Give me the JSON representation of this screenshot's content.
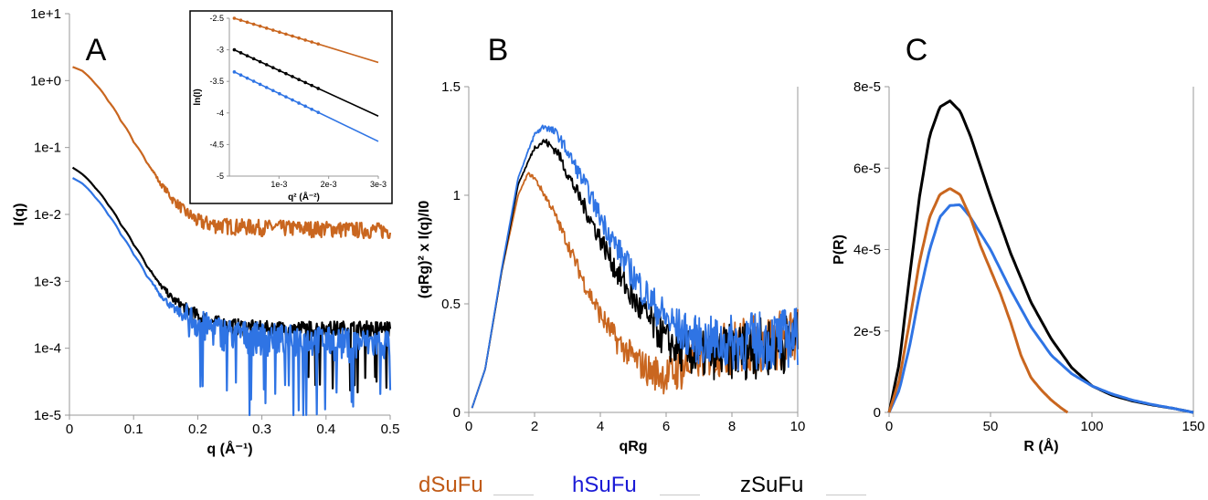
{
  "figure": {
    "legend": [
      {
        "label": "dSuFu",
        "color": "#c05a16"
      },
      {
        "label": "hSuFu",
        "color": "#1a1ad6"
      },
      {
        "label": "zSuFu",
        "color": "#000000"
      }
    ]
  },
  "colors": {
    "dSuFu": "#c9661f",
    "hSuFu": "#2f74e4",
    "zSuFu": "#000000"
  },
  "chart_data": [
    {
      "panel": "A",
      "type": "line",
      "xlabel": "q (Å⁻¹)",
      "ylabel": "I(q)",
      "xlim": [
        0,
        0.5
      ],
      "ylim": [
        1e-05,
        10
      ],
      "yscale": "log",
      "xticks": [
        "0",
        "0.1",
        "0.2",
        "0.3",
        "0.4",
        "0.5"
      ],
      "yticks": [
        "1e-5",
        "1e-4",
        "1e-3",
        "1e-2",
        "1e-1",
        "1e+0",
        "1e+1"
      ],
      "series": [
        {
          "key": "dSuFu",
          "x": [
            0.005,
            0.02,
            0.04,
            0.06,
            0.08,
            0.1,
            0.12,
            0.14,
            0.16,
            0.18,
            0.2,
            0.22,
            0.25,
            0.3,
            0.35,
            0.4,
            0.45,
            0.5
          ],
          "values": [
            1.6,
            1.4,
            0.9,
            0.5,
            0.25,
            0.12,
            0.06,
            0.03,
            0.017,
            0.011,
            0.008,
            0.0072,
            0.0068,
            0.0065,
            0.0063,
            0.0062,
            0.006,
            0.0058
          ]
        },
        {
          "key": "zSuFu",
          "x": [
            0.005,
            0.02,
            0.04,
            0.06,
            0.08,
            0.1,
            0.12,
            0.14,
            0.16,
            0.18,
            0.2,
            0.22,
            0.25,
            0.3,
            0.35,
            0.4,
            0.45,
            0.5
          ],
          "values": [
            0.05,
            0.04,
            0.025,
            0.014,
            0.007,
            0.0035,
            0.0017,
            0.0009,
            0.00055,
            0.0004,
            0.0003,
            0.00025,
            0.00022,
            0.0002,
            0.0002,
            0.0002,
            0.0002,
            0.0002
          ]
        },
        {
          "key": "hSuFu",
          "x": [
            0.005,
            0.02,
            0.04,
            0.06,
            0.08,
            0.1,
            0.12,
            0.14,
            0.16,
            0.18,
            0.2,
            0.22,
            0.25,
            0.3,
            0.35,
            0.4,
            0.45,
            0.5
          ],
          "values": [
            0.035,
            0.029,
            0.018,
            0.01,
            0.005,
            0.0025,
            0.0012,
            0.00065,
            0.0004,
            0.0003,
            0.00024,
            0.0002,
            0.00017,
            0.00015,
            0.00014,
            0.00013,
            0.00012,
            0.00012
          ]
        }
      ]
    },
    {
      "panel": "A-inset",
      "type": "line",
      "xlabel": "q² (Å⁻²)",
      "ylabel": "ln(I)",
      "xlim": [
        0,
        0.003
      ],
      "ylim": [
        -5,
        -2.5
      ],
      "xticks": [
        "1e-3",
        "2e-3",
        "3e-3"
      ],
      "yticks": [
        "-2.5",
        "-3",
        "-3.5",
        "-4",
        "-4.5",
        "-5"
      ],
      "series": [
        {
          "key": "dSuFu",
          "x": [
            0.0001,
            0.003
          ],
          "values": [
            -2.5,
            -3.2
          ]
        },
        {
          "key": "zSuFu",
          "x": [
            0.0001,
            0.003
          ],
          "values": [
            -3.0,
            -4.05
          ]
        },
        {
          "key": "hSuFu",
          "x": [
            0.0001,
            0.003
          ],
          "values": [
            -3.35,
            -4.45
          ]
        }
      ]
    },
    {
      "panel": "B",
      "type": "line",
      "xlabel": "qRg",
      "ylabel": "(qRg)² x I(q)/I0",
      "xlim": [
        0,
        10
      ],
      "ylim": [
        0,
        1.5
      ],
      "xticks": [
        "0",
        "2",
        "4",
        "6",
        "8",
        "10"
      ],
      "yticks": [
        "0",
        "0.5",
        "1",
        "1.5"
      ],
      "series": [
        {
          "key": "dSuFu",
          "x": [
            0.1,
            0.5,
            1,
            1.5,
            1.8,
            2,
            2.5,
            3,
            3.5,
            4,
            4.5,
            5,
            5.5,
            6,
            6.5,
            7,
            8,
            9,
            10
          ],
          "values": [
            0.02,
            0.2,
            0.65,
            1.0,
            1.1,
            1.08,
            0.95,
            0.78,
            0.6,
            0.45,
            0.33,
            0.25,
            0.19,
            0.17,
            0.2,
            0.26,
            0.3,
            0.32,
            0.35
          ]
        },
        {
          "key": "zSuFu",
          "x": [
            0.1,
            0.5,
            1,
            1.5,
            2,
            2.3,
            2.7,
            3,
            3.5,
            4,
            4.5,
            5,
            5.5,
            6,
            6.5,
            7,
            8,
            9,
            10
          ],
          "values": [
            0.02,
            0.2,
            0.65,
            1.05,
            1.22,
            1.25,
            1.2,
            1.1,
            0.95,
            0.8,
            0.65,
            0.52,
            0.42,
            0.33,
            0.28,
            0.26,
            0.28,
            0.3,
            0.33
          ]
        },
        {
          "key": "hSuFu",
          "x": [
            0.1,
            0.5,
            1,
            1.5,
            2,
            2.3,
            2.7,
            3,
            3.5,
            4,
            4.5,
            5,
            5.5,
            6,
            6.5,
            7,
            8,
            9,
            10
          ],
          "values": [
            0.02,
            0.2,
            0.66,
            1.08,
            1.28,
            1.32,
            1.28,
            1.2,
            1.06,
            0.9,
            0.76,
            0.63,
            0.52,
            0.43,
            0.37,
            0.33,
            0.32,
            0.33,
            0.35
          ]
        }
      ]
    },
    {
      "panel": "C",
      "type": "line",
      "xlabel": "R (Å)",
      "ylabel": "P(R)",
      "xlim": [
        0,
        150
      ],
      "ylim": [
        0,
        8e-05
      ],
      "xticks": [
        "0",
        "50",
        "100",
        "150"
      ],
      "yticks": [
        "0",
        "2e-5",
        "4e-5",
        "6e-5",
        "8e-5"
      ],
      "series": [
        {
          "key": "zSuFu",
          "x": [
            0,
            5,
            10,
            15,
            20,
            25,
            30,
            35,
            40,
            50,
            60,
            70,
            80,
            90,
            100,
            110,
            120,
            130,
            140,
            150
          ],
          "values": [
            0,
            1.2e-05,
            3.3e-05,
            5.3e-05,
            6.8e-05,
            7.5e-05,
            7.65e-05,
            7.4e-05,
            6.8e-05,
            5.3e-05,
            3.9e-05,
            2.7e-05,
            1.8e-05,
            1.1e-05,
            6.5e-06,
            4.2e-06,
            2.8e-06,
            1.8e-06,
            1e-06,
            0
          ]
        },
        {
          "key": "hSuFu",
          "x": [
            0,
            5,
            10,
            15,
            20,
            25,
            30,
            35,
            40,
            50,
            60,
            70,
            80,
            90,
            100,
            110,
            120,
            130,
            140,
            150
          ],
          "values": [
            0,
            5.5e-06,
            1.6e-05,
            2.9e-05,
            4e-05,
            4.8e-05,
            5.08e-05,
            5.1e-05,
            4.8e-05,
            4e-05,
            3e-05,
            2.1e-05,
            1.4e-05,
            9.5e-06,
            6.5e-06,
            4.5e-06,
            3e-06,
            1.9e-06,
            1e-06,
            0
          ]
        },
        {
          "key": "dSuFu",
          "x": [
            0,
            5,
            10,
            15,
            20,
            25,
            30,
            35,
            40,
            45,
            50,
            55,
            60,
            65,
            70,
            75,
            80,
            85,
            88
          ],
          "values": [
            0,
            8e-06,
            2.2e-05,
            3.7e-05,
            4.8e-05,
            5.35e-05,
            5.5e-05,
            5.35e-05,
            4.8e-05,
            4.1e-05,
            3.5e-05,
            2.9e-05,
            2.2e-05,
            1.4e-05,
            8.5e-06,
            5.5e-06,
            3e-06,
            1e-06,
            0
          ]
        }
      ]
    }
  ],
  "panels": {
    "A": {
      "label": "A"
    },
    "B": {
      "label": "B"
    },
    "C": {
      "label": "C"
    }
  }
}
